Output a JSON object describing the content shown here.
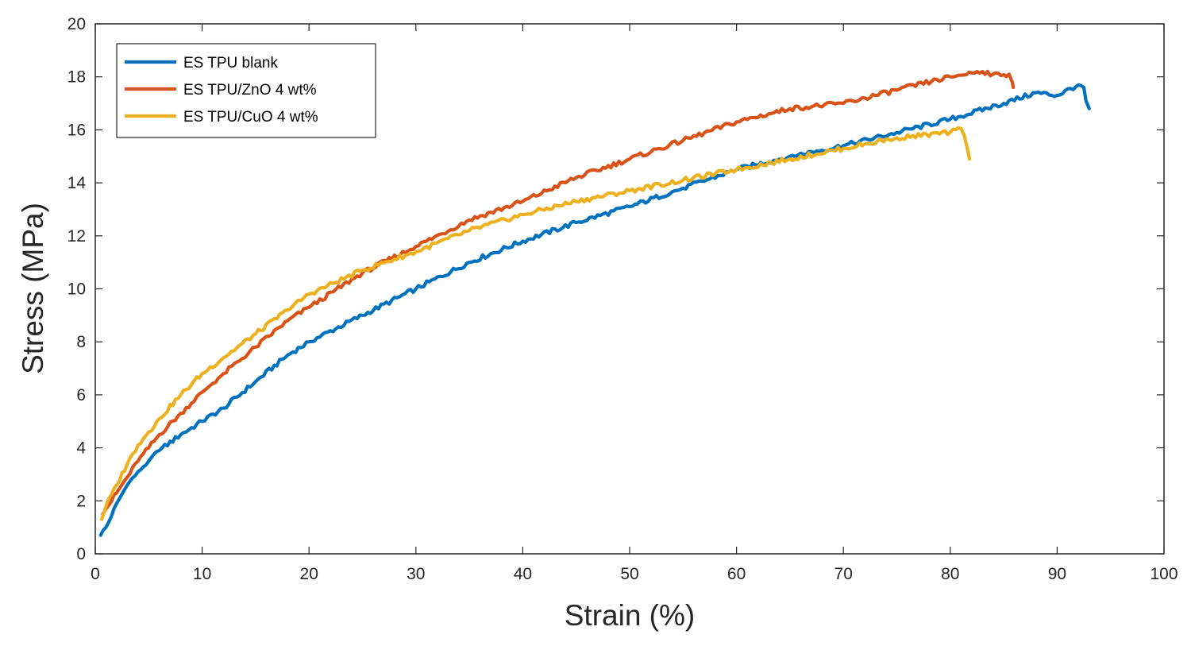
{
  "chart_data": {
    "type": "line",
    "title": "",
    "xlabel": "Strain (%)",
    "ylabel": "Stress (MPa)",
    "xlim": [
      0,
      100
    ],
    "ylim": [
      0,
      20
    ],
    "xticks": [
      0,
      10,
      20,
      30,
      40,
      50,
      60,
      70,
      80,
      90,
      100
    ],
    "yticks": [
      0,
      2,
      4,
      6,
      8,
      10,
      12,
      14,
      16,
      18,
      20
    ],
    "grid": false,
    "legend_position": "top-left",
    "series": [
      {
        "name": "ES TPU blank",
        "color": "#0072BD",
        "x": [
          0.5,
          1.0,
          1.5,
          2.0,
          3.0,
          4.0,
          5.0,
          6.0,
          8.0,
          10.0,
          12.0,
          15.0,
          18.0,
          20.0,
          25.0,
          30.0,
          35.0,
          40.0,
          45.0,
          50.0,
          55.0,
          60.0,
          65.0,
          70.0,
          75.0,
          80.0,
          85.0,
          88.0,
          90.0,
          92.0,
          92.5,
          92.7,
          93.0
        ],
        "y": [
          0.7,
          1.0,
          1.4,
          1.9,
          2.6,
          3.1,
          3.5,
          3.9,
          4.5,
          5.0,
          5.5,
          6.5,
          7.5,
          8.0,
          9.0,
          10.0,
          11.0,
          11.8,
          12.5,
          13.1,
          13.8,
          14.5,
          15.0,
          15.4,
          15.9,
          16.4,
          17.0,
          17.4,
          17.3,
          17.7,
          17.6,
          17.1,
          16.8
        ]
      },
      {
        "name": "ES TPU/ZnO 4 wt%",
        "color": "#D95319",
        "x": [
          0.7,
          1.0,
          2.0,
          3.0,
          4.0,
          5.0,
          6.0,
          8.0,
          10.0,
          12.0,
          15.0,
          18.0,
          20.0,
          25.0,
          30.0,
          35.0,
          40.0,
          45.0,
          50.0,
          55.0,
          60.0,
          65.0,
          70.0,
          75.0,
          80.0,
          82.0,
          83.0,
          84.0,
          85.5,
          85.8,
          85.9
        ],
        "y": [
          1.5,
          1.7,
          2.3,
          2.9,
          3.5,
          4.0,
          4.5,
          5.3,
          6.1,
          6.8,
          7.8,
          8.8,
          9.3,
          10.6,
          11.6,
          12.6,
          13.3,
          14.2,
          14.9,
          15.6,
          16.3,
          16.8,
          17.0,
          17.5,
          18.0,
          18.15,
          18.2,
          18.1,
          18.1,
          17.8,
          17.6
        ]
      },
      {
        "name": "ES TPU/CuO 4 wt%",
        "color": "#EDB120",
        "x": [
          0.6,
          1.0,
          2.0,
          3.0,
          4.0,
          5.0,
          6.0,
          8.0,
          10.0,
          12.0,
          15.0,
          18.0,
          20.0,
          25.0,
          30.0,
          35.0,
          40.0,
          45.0,
          50.0,
          55.0,
          60.0,
          65.0,
          70.0,
          75.0,
          80.0,
          81.0,
          81.3,
          81.6,
          81.8
        ],
        "y": [
          1.3,
          1.8,
          2.6,
          3.4,
          4.1,
          4.6,
          5.1,
          6.0,
          6.8,
          7.4,
          8.3,
          9.2,
          9.8,
          10.7,
          11.4,
          12.2,
          12.8,
          13.3,
          13.7,
          14.1,
          14.5,
          14.9,
          15.3,
          15.7,
          15.9,
          16.05,
          15.8,
          15.3,
          14.9
        ]
      }
    ]
  }
}
